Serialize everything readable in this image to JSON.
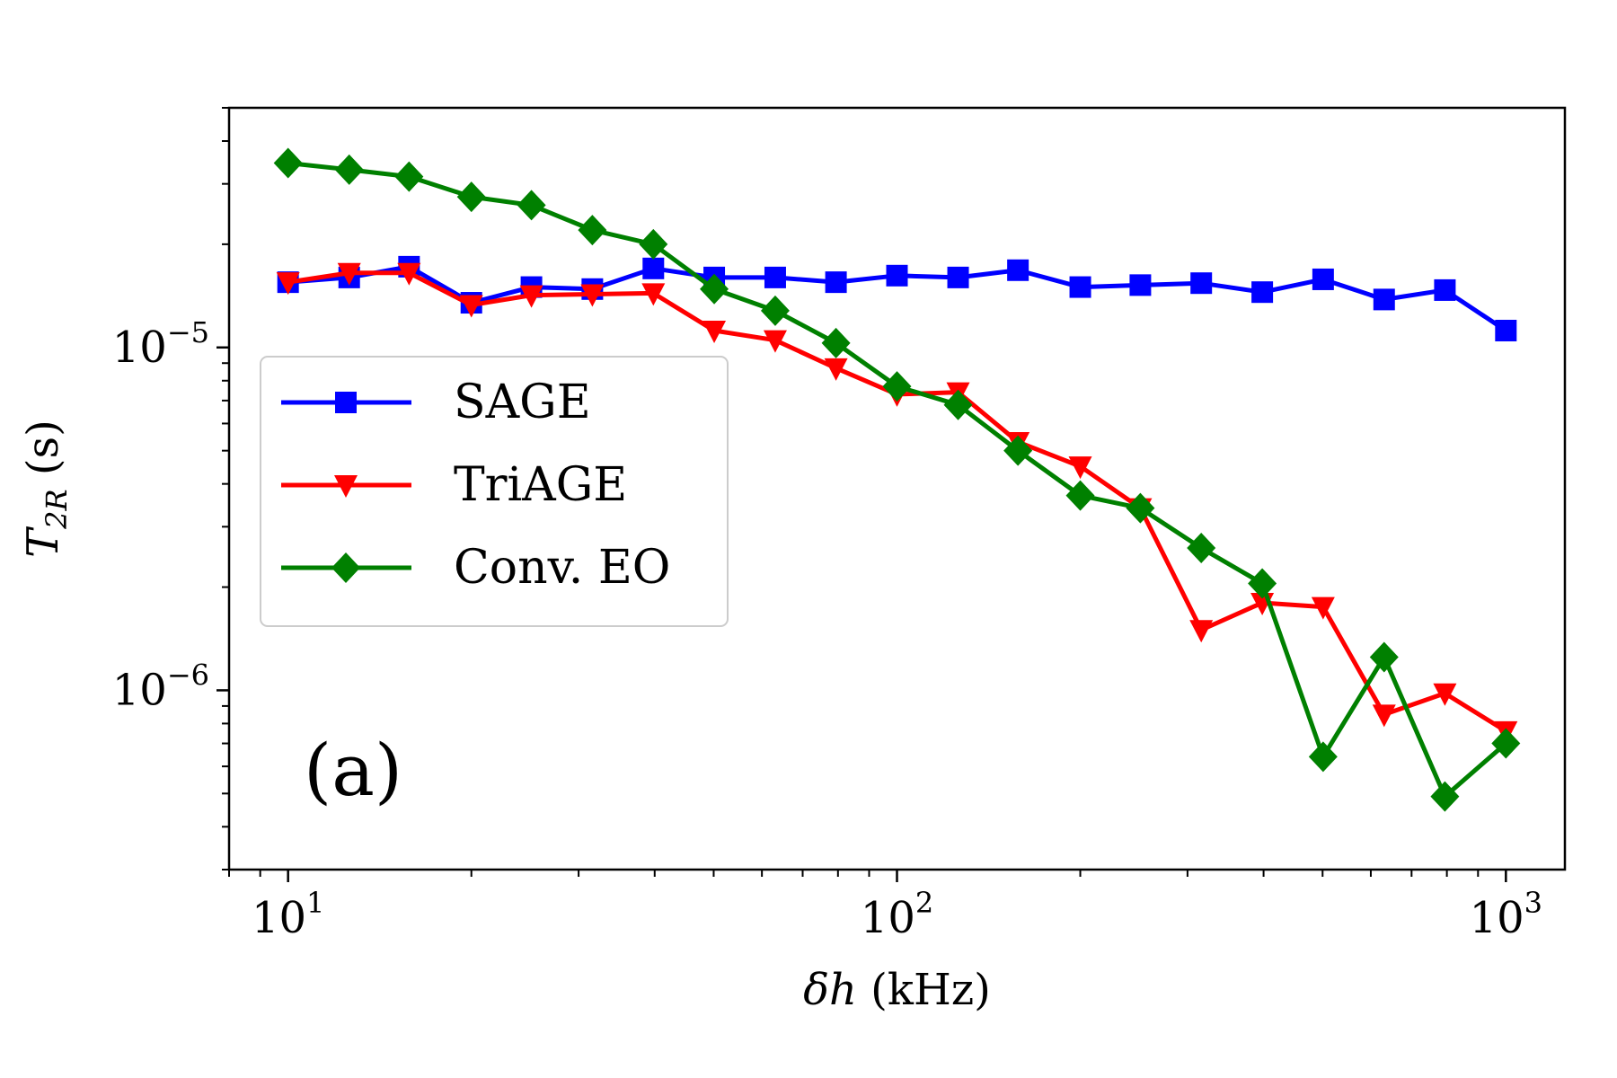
{
  "chart_data": {
    "type": "line",
    "xlabel": "δh (kHz)",
    "ylabel": "T2R (s)",
    "ylabel_main": "T",
    "ylabel_sub": "2R",
    "ylabel_unit": " (s)",
    "xlabel_var": "δh",
    "xlabel_unit": " (kHz)",
    "x_scale": "log",
    "y_scale": "log",
    "xlim": [
      8,
      1250
    ],
    "ylim": [
      3e-07,
      5e-05
    ],
    "x_ticks": [
      {
        "value": 10,
        "base": "10",
        "exp": "1"
      },
      {
        "value": 100,
        "base": "10",
        "exp": "2"
      },
      {
        "value": 1000,
        "base": "10",
        "exp": "3"
      }
    ],
    "y_ticks": [
      {
        "value": 1e-06,
        "base": "10",
        "exp": "−6"
      },
      {
        "value": 1e-05,
        "base": "10",
        "exp": "−5"
      }
    ],
    "grid": false,
    "legend_position": "center-left",
    "panel_label": "(a)",
    "x": [
      10,
      12.6,
      15.8,
      20,
      25.1,
      31.6,
      39.8,
      50.1,
      63.1,
      79.4,
      100,
      126,
      158,
      200,
      251,
      316,
      398,
      501,
      631,
      794,
      1000
    ],
    "series": [
      {
        "name": "SAGE",
        "color": "#0000ff",
        "marker": "square",
        "values": [
          1.55e-05,
          1.6e-05,
          1.72e-05,
          1.35e-05,
          1.5e-05,
          1.48e-05,
          1.7e-05,
          1.6e-05,
          1.6e-05,
          1.55e-05,
          1.62e-05,
          1.6e-05,
          1.68e-05,
          1.5e-05,
          1.52e-05,
          1.54e-05,
          1.45e-05,
          1.58e-05,
          1.38e-05,
          1.47e-05,
          1.12e-05
        ]
      },
      {
        "name": "TriAGE",
        "color": "#ff0000",
        "marker": "triangle-down",
        "values": [
          1.55e-05,
          1.65e-05,
          1.65e-05,
          1.33e-05,
          1.42e-05,
          1.43e-05,
          1.44e-05,
          1.12e-05,
          1.05e-05,
          8.7e-06,
          7.3e-06,
          7.4e-06,
          5.3e-06,
          4.5e-06,
          3.4e-06,
          1.5e-06,
          1.8e-06,
          1.75e-06,
          8.5e-07,
          9.8e-07,
          7.6e-07
        ]
      },
      {
        "name": "Conv. EO",
        "color": "#008000",
        "marker": "diamond",
        "values": [
          3.45e-05,
          3.3e-05,
          3.15e-05,
          2.75e-05,
          2.6e-05,
          2.2e-05,
          2e-05,
          1.48e-05,
          1.28e-05,
          1.03e-05,
          7.7e-06,
          6.8e-06,
          5e-06,
          3.7e-06,
          3.4e-06,
          2.6e-06,
          2.05e-06,
          6.4e-07,
          1.25e-06,
          4.9e-07,
          7e-07
        ]
      }
    ]
  }
}
